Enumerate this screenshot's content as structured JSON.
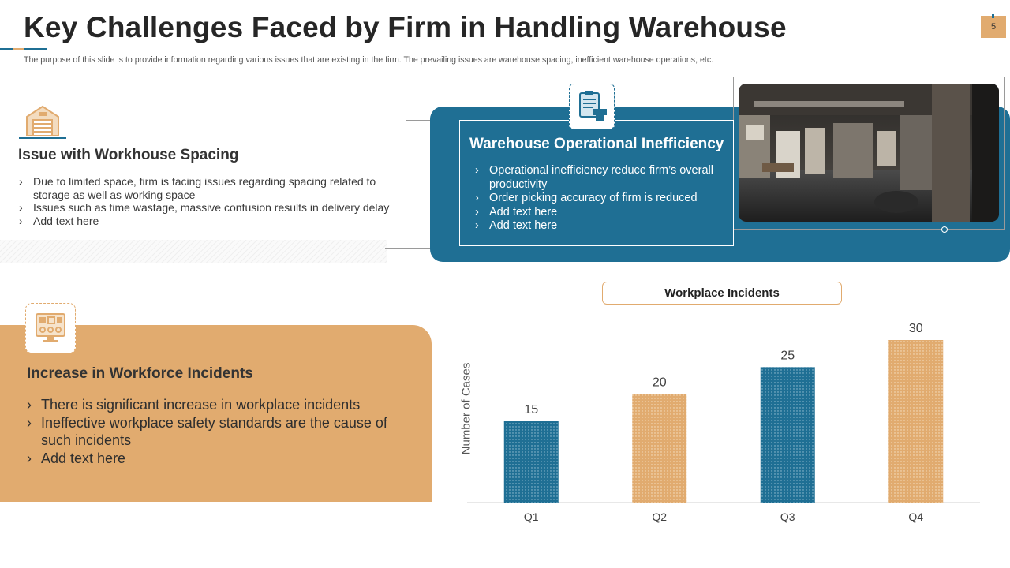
{
  "header": {
    "title": "Key Challenges Faced by Firm in Handling Warehouse",
    "subtitle": "The purpose of this slide is to provide information regarding various issues that are existing in the firm. The prevailing issues are warehouse spacing, inefficient warehouse operations, etc.",
    "page_number": "5"
  },
  "spacing_card": {
    "icon": "warehouse-icon",
    "title": "Issue with Workhouse Spacing",
    "bullets": [
      "Due to limited space, firm is facing issues regarding spacing related to storage as well as working space",
      "Issues such as time wastage, massive confusion results in delivery delay",
      "Add text here"
    ]
  },
  "operational_card": {
    "icon": "clipboard-boxes-icon",
    "title": "Warehouse Operational Inefficiency",
    "bullets": [
      "Operational inefficiency reduce firm’s overall productivity",
      "Order picking accuracy of firm is reduced",
      "Add text here",
      "Add text here"
    ],
    "photo": "warehouse-photo"
  },
  "incidents_card": {
    "icon": "control-panel-icon",
    "title": "Increase in Workforce Incidents",
    "bullets": [
      "There is significant increase in workplace incidents",
      "Ineffective workplace safety standards are the cause of such incidents",
      "Add text here"
    ]
  },
  "bullet_glyph": "›",
  "colors": {
    "blue": "#1f6f94",
    "tan": "#e1ab6f",
    "text": "#3a3a3a"
  },
  "chart_data": {
    "type": "bar",
    "title": "Workplace Incidents",
    "xlabel": "",
    "ylabel": "Number of Cases",
    "categories": [
      "Q1",
      "Q2",
      "Q3",
      "Q4"
    ],
    "values": [
      15,
      20,
      25,
      30
    ],
    "bar_colors": [
      "#1f6f94",
      "#e1ab6f",
      "#1f6f94",
      "#e1ab6f"
    ],
    "ylim": [
      0,
      30
    ],
    "grid": false,
    "data_labels": true
  }
}
